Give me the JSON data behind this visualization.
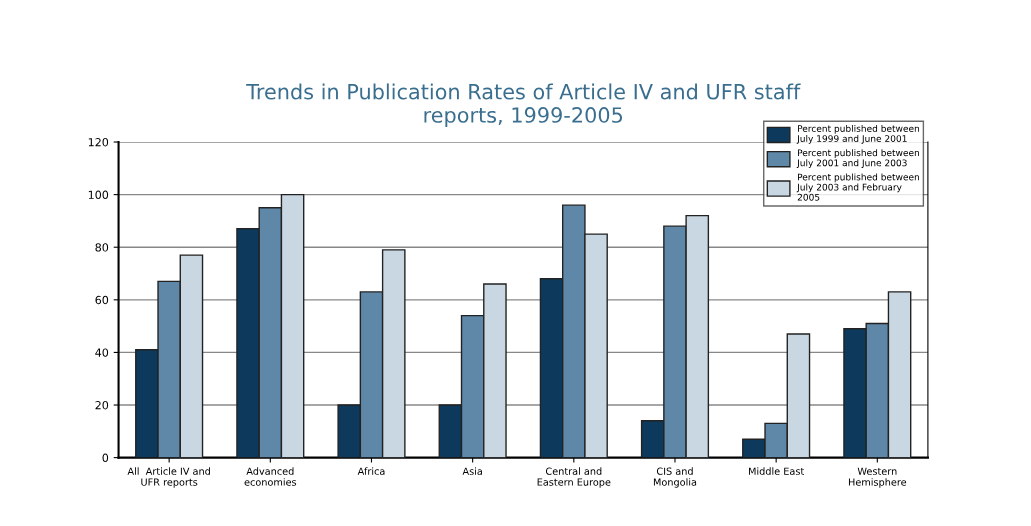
{
  "chart_data": {
    "type": "bar",
    "title": "Trends in Publication Rates of Article IV and UFR staff\nreports, 1999-2005",
    "categories": [
      "All  Article IV and\nUFR reports",
      "Advanced\neconomies",
      "Africa",
      "Asia",
      "Central and\nEastern Europe",
      "CIS and\nMongolia",
      "Middle East",
      "Western\nHemisphere"
    ],
    "series": [
      {
        "name": "Percent published between\nJuly 1999 and June 2001",
        "color": "#0d3a5c",
        "values": [
          41,
          87,
          20,
          20,
          68,
          14,
          7,
          49
        ]
      },
      {
        "name": "Percent published between\nJuly 2001 and June 2003",
        "color": "#5f88a8",
        "values": [
          67,
          95,
          63,
          54,
          96,
          88,
          13,
          51
        ]
      },
      {
        "name": "Percent published between\nJuly 2003 and February\n2005",
        "color": "#c9d7e3",
        "values": [
          77,
          100,
          79,
          66,
          85,
          92,
          47,
          63
        ]
      }
    ],
    "ylim": [
      0,
      120
    ],
    "yticks": [
      0,
      20,
      40,
      60,
      80,
      100,
      120
    ],
    "grid": "y",
    "legend": "top right"
  }
}
